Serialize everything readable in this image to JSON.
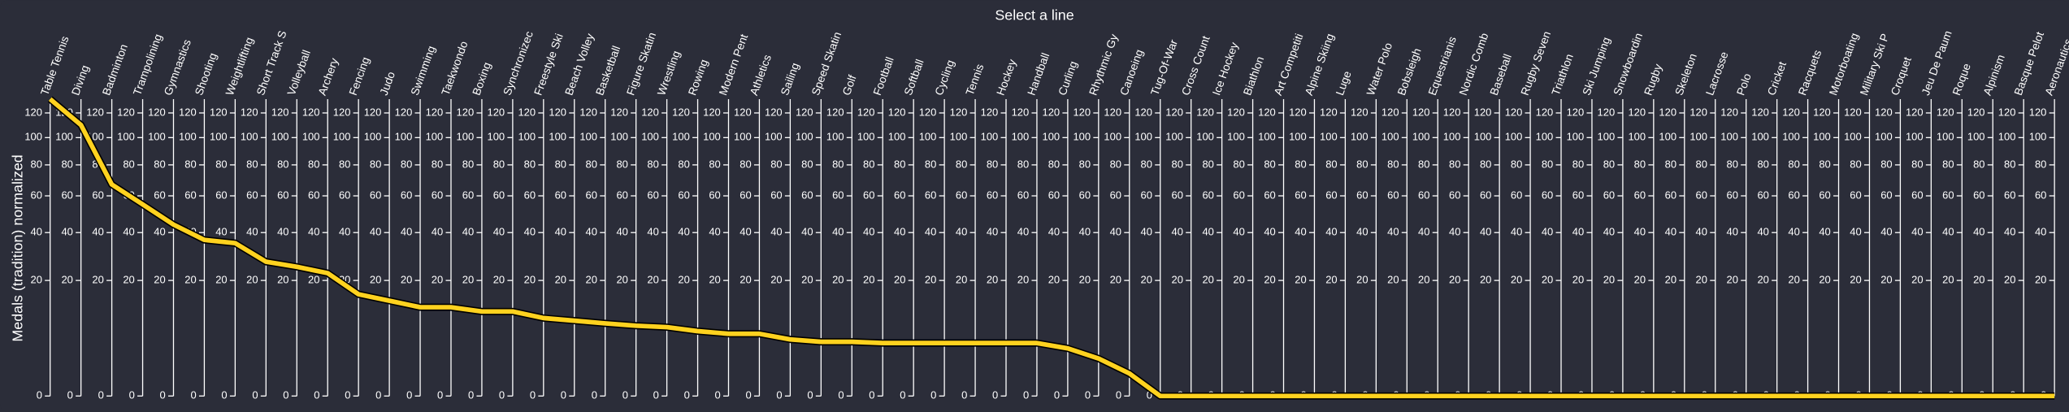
{
  "chart_data": {
    "type": "parallel",
    "title": "Select a line",
    "y_label": "Medals (tradition) normalized",
    "categories": [
      "Table Tennis",
      "Diving",
      "Badminton",
      "Trampolining",
      "Gymnastics",
      "Shooting",
      "Weightlifting",
      "Short Track S",
      "Volleyball",
      "Archery",
      "Fencing",
      "Judo",
      "Swimming",
      "Taekwondo",
      "Boxing",
      "Synchronizec",
      "Freestyle Ski",
      "Beach Volley",
      "Basketball",
      "Figure Skatin",
      "Wrestling",
      "Rowing",
      "Modern Pent",
      "Athletics",
      "Sailing",
      "Speed Skatin",
      "Golf",
      "Football",
      "Softball",
      "Cycling",
      "Tennis",
      "Hockey",
      "Handball",
      "Curling",
      "Rhythmic Gy",
      "Canoeing",
      "Tug-Of-War",
      "Cross Count",
      "Ice Hockey",
      "Biathlon",
      "Art Competiti",
      "Alpine Skiing",
      "Luge",
      "Water Polo",
      "Bobsleigh",
      "Equestrianis",
      "Nordic Comb",
      "Baseball",
      "Rugby Seven",
      "Triathlon",
      "Ski Jumping",
      "Snowboardin",
      "Rugby",
      "Skeleton",
      "Lacrosse",
      "Polo",
      "Cricket",
      "Racquets",
      "Motorboating",
      "Military Ski P",
      "Croquet",
      "Jeu De Paum",
      "Roque",
      "Alpinism",
      "Basque Pelot",
      "Aeronautics"
    ],
    "values": [
      132,
      110,
      67,
      55,
      44,
      36.5,
      35,
      27,
      25,
      22.6,
      15.5,
      13.6,
      11.8,
      11.8,
      10.7,
      10.7,
      9.1,
      8.5,
      7.9,
      7.4,
      7.1,
      6.3,
      5.8,
      5.8,
      4.8,
      4.4,
      4.4,
      4.2,
      4.2,
      4.2,
      4.2,
      4.2,
      4.2,
      3.4,
      2.1,
      0.76,
      0,
      0,
      0,
      0,
      0,
      0,
      0,
      0,
      0,
      0,
      0,
      0,
      0,
      0,
      0,
      0,
      0,
      0,
      0,
      0,
      0,
      0,
      0,
      0,
      0,
      0,
      0,
      0,
      0,
      0
    ],
    "color": "#ffd21f",
    "scale": "sqrt",
    "ylim": [
      0,
      132
    ],
    "yticks": [
      0,
      20,
      40,
      60,
      80,
      100,
      120
    ]
  }
}
